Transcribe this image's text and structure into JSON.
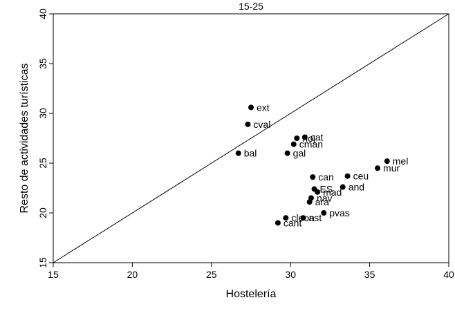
{
  "chart_data": {
    "type": "scatter",
    "title": "15-25",
    "xlabel": "Hostelería",
    "ylabel": "Resto de actividades turísticas",
    "xlim": [
      15,
      40
    ],
    "ylim": [
      15,
      40
    ],
    "xticks": [
      "15",
      "20",
      "25",
      "30",
      "35",
      "40"
    ],
    "yticks": [
      "15",
      "20",
      "25",
      "30",
      "35",
      "40"
    ],
    "grid": false,
    "reference_line": "y = x",
    "points": [
      {
        "label": "ext",
        "x": 27.5,
        "y": 30.6
      },
      {
        "label": "cval",
        "x": 27.3,
        "y": 28.9
      },
      {
        "label": "bal",
        "x": 26.7,
        "y": 26.0
      },
      {
        "label": "rioj",
        "x": 30.4,
        "y": 27.5
      },
      {
        "label": "cat",
        "x": 30.9,
        "y": 27.6
      },
      {
        "label": "cman",
        "x": 30.2,
        "y": 26.9
      },
      {
        "label": "gal",
        "x": 29.8,
        "y": 26.0
      },
      {
        "label": "mel",
        "x": 36.1,
        "y": 25.2
      },
      {
        "label": "mur",
        "x": 35.5,
        "y": 24.5
      },
      {
        "label": "can",
        "x": 31.4,
        "y": 23.6
      },
      {
        "label": "ceu",
        "x": 33.6,
        "y": 23.7
      },
      {
        "label": "and",
        "x": 33.3,
        "y": 22.6
      },
      {
        "label": "ES",
        "x": 31.5,
        "y": 22.4
      },
      {
        "label": "mad",
        "x": 31.7,
        "y": 22.1
      },
      {
        "label": "nav",
        "x": 31.3,
        "y": 21.5
      },
      {
        "label": "ara",
        "x": 31.2,
        "y": 21.1
      },
      {
        "label": "pvas",
        "x": 32.1,
        "y": 20.0
      },
      {
        "label": "cleon",
        "x": 29.7,
        "y": 19.5
      },
      {
        "label": "ast",
        "x": 30.8,
        "y": 19.5
      },
      {
        "label": "cant",
        "x": 29.2,
        "y": 19.0
      }
    ]
  }
}
